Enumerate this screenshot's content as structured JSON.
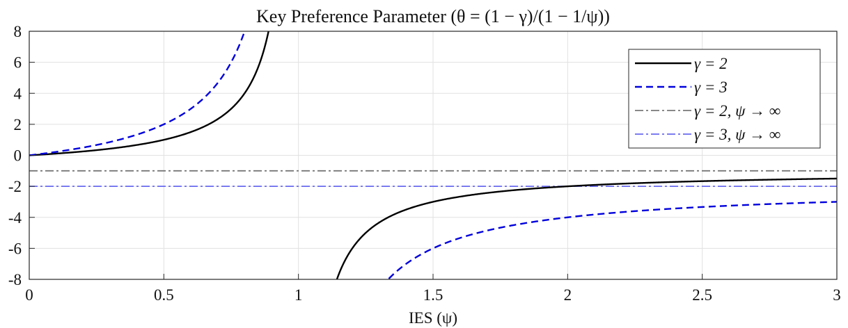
{
  "chart_data": {
    "type": "line",
    "title": "Key Preference Parameter (θ = (1 − γ)/(1 − 1/ψ))",
    "xlabel": "IES (ψ)",
    "ylabel": "",
    "xlim": [
      0,
      3
    ],
    "ylim": [
      -8,
      8
    ],
    "x_ticks": [
      0,
      0.5,
      1,
      1.5,
      2,
      2.5,
      3
    ],
    "x_tick_labels": [
      "0",
      "0.5",
      "1",
      "1.5",
      "2",
      "2.5",
      "3"
    ],
    "y_ticks": [
      8,
      6,
      4,
      2,
      0,
      -2,
      -4,
      -6,
      -8
    ],
    "y_tick_labels": [
      "8",
      "6",
      "4",
      "2",
      "0",
      "-2",
      "-4",
      "-6",
      "-8"
    ],
    "grid": true,
    "legend_position": "top-right",
    "series": [
      {
        "name": "γ = 2",
        "gamma": 2,
        "kind": "curve",
        "color": "#000000",
        "dash": "solid",
        "points": [
          [
            0.0,
            0.0
          ],
          [
            0.1,
            0.111
          ],
          [
            0.2,
            0.25
          ],
          [
            0.3,
            0.429
          ],
          [
            0.4,
            0.667
          ],
          [
            0.5,
            1.0
          ],
          [
            0.6,
            1.5
          ],
          [
            0.7,
            2.333
          ],
          [
            0.75,
            3.0
          ],
          [
            0.8,
            4.0
          ],
          [
            0.85,
            5.667
          ],
          [
            0.889,
            8.0
          ],
          [
            1.143,
            -8.0
          ],
          [
            1.2,
            -6.0
          ],
          [
            1.3,
            -4.333
          ],
          [
            1.5,
            -3.0
          ],
          [
            1.75,
            -2.333
          ],
          [
            2.0,
            -2.0
          ],
          [
            2.5,
            -1.667
          ],
          [
            3.0,
            -1.5
          ]
        ]
      },
      {
        "name": "γ = 3",
        "gamma": 3,
        "kind": "curve",
        "color": "#0000dd",
        "dash": "dashed",
        "points": [
          [
            0.0,
            0.0
          ],
          [
            0.1,
            0.222
          ],
          [
            0.2,
            0.5
          ],
          [
            0.3,
            0.857
          ],
          [
            0.4,
            1.333
          ],
          [
            0.5,
            2.0
          ],
          [
            0.6,
            3.0
          ],
          [
            0.7,
            4.667
          ],
          [
            0.75,
            6.0
          ],
          [
            0.8,
            8.0
          ],
          [
            1.333,
            -8.0
          ],
          [
            1.4,
            -7.0
          ],
          [
            1.5,
            -6.0
          ],
          [
            1.75,
            -4.667
          ],
          [
            2.0,
            -4.0
          ],
          [
            2.5,
            -3.333
          ],
          [
            3.0,
            -3.0
          ]
        ]
      },
      {
        "name": "γ = 2,  ψ → ∞",
        "kind": "asymptote",
        "color": "#777777",
        "dash": "dashdot",
        "points": [
          [
            0.0,
            -1.0
          ],
          [
            3.0,
            -1.0
          ]
        ]
      },
      {
        "name": "γ = 3,  ψ → ∞",
        "kind": "asymptote",
        "color": "#6a6aee",
        "dash": "dashdot",
        "points": [
          [
            0.0,
            -2.0
          ],
          [
            3.0,
            -2.0
          ]
        ]
      }
    ]
  }
}
